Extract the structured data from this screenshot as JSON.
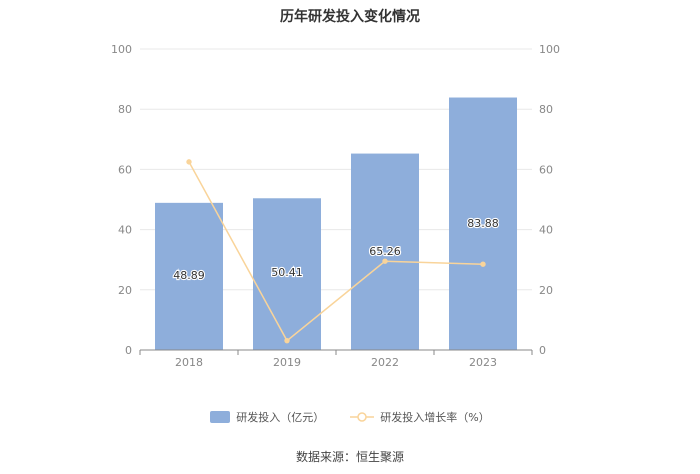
{
  "chart_data": {
    "type": "bar",
    "title": "历年研发投入变化情况",
    "categories": [
      "2018",
      "2019",
      "2022",
      "2023"
    ],
    "series": [
      {
        "name": "研发投入（亿元）",
        "type": "bar",
        "axis": "left",
        "values": [
          48.89,
          50.41,
          65.26,
          83.88
        ],
        "data_labels": [
          "48.89",
          "50.41",
          "65.26",
          "83.88"
        ],
        "color": "#8eaedb"
      },
      {
        "name": "研发投入增长率（%）",
        "type": "line",
        "axis": "right",
        "values": [
          62.5,
          3.1,
          29.5,
          28.5
        ],
        "color": "#f9d49a"
      }
    ],
    "y_left": {
      "ylim": [
        0,
        100
      ],
      "ticks": [
        "0",
        "20",
        "40",
        "60",
        "80",
        "100"
      ]
    },
    "y_right": {
      "ylim": [
        0,
        100
      ],
      "ticks": [
        "0",
        "20",
        "40",
        "60",
        "80",
        "100"
      ]
    },
    "grid": true,
    "legend_position": "bottom"
  },
  "source_text": "数据来源：恒生聚源"
}
